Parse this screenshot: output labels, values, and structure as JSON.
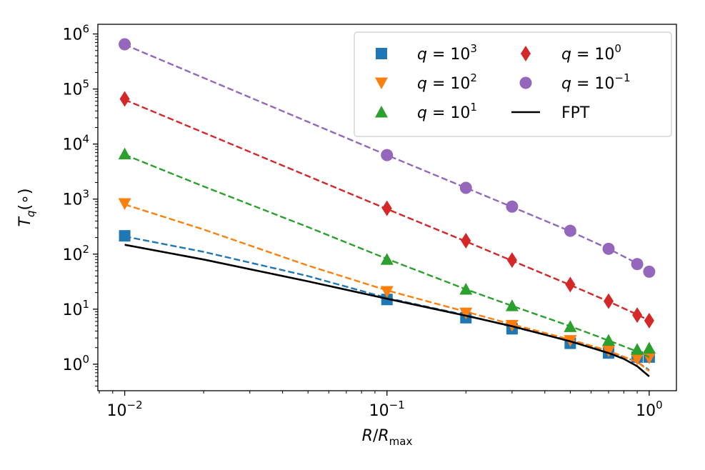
{
  "chart_data": {
    "type": "line",
    "scale": {
      "x": "log",
      "y": "log"
    },
    "xlabel": {
      "main": "R/R",
      "sub": "max"
    },
    "ylabel": {
      "main": "T",
      "sub": "q",
      "suffix": "(∘)"
    },
    "xlim": [
      0.0079,
      1.27
    ],
    "ylim": [
      0.33,
      1500000
    ],
    "x_ticks": [
      {
        "value": 0.01,
        "base": "10",
        "exp": "−2"
      },
      {
        "value": 0.1,
        "base": "10",
        "exp": "−1"
      },
      {
        "value": 1,
        "base": "10",
        "exp": "0"
      }
    ],
    "y_ticks": [
      {
        "value": 1,
        "base": "10",
        "exp": "0"
      },
      {
        "value": 10,
        "base": "10",
        "exp": "1"
      },
      {
        "value": 100,
        "base": "10",
        "exp": "2"
      },
      {
        "value": 1000,
        "base": "10",
        "exp": "3"
      },
      {
        "value": 10000,
        "base": "10",
        "exp": "4"
      },
      {
        "value": 100000,
        "base": "10",
        "exp": "5"
      },
      {
        "value": 1000000,
        "base": "10",
        "exp": "6"
      }
    ],
    "legend_position": "top-right",
    "series": [
      {
        "name": "q = 10^3",
        "q_exp": "3",
        "color": "#1f77b4",
        "marker": "square",
        "points": [
          {
            "x": 0.01,
            "y": 215
          },
          {
            "x": 0.1,
            "y": 15
          },
          {
            "x": 0.2,
            "y": 7
          },
          {
            "x": 0.3,
            "y": 4.4
          },
          {
            "x": 0.5,
            "y": 2.4
          },
          {
            "x": 0.7,
            "y": 1.6
          },
          {
            "x": 0.9,
            "y": 1.35
          },
          {
            "x": 1.0,
            "y": 1.35
          }
        ],
        "fit_curve": [
          {
            "x": 0.01,
            "y": 210
          },
          {
            "x": 0.02,
            "y": 110
          },
          {
            "x": 0.05,
            "y": 40
          },
          {
            "x": 0.1,
            "y": 16
          },
          {
            "x": 0.2,
            "y": 7.8
          },
          {
            "x": 0.3,
            "y": 4.8
          },
          {
            "x": 0.5,
            "y": 2.7
          },
          {
            "x": 0.7,
            "y": 1.7
          },
          {
            "x": 0.9,
            "y": 1.1
          },
          {
            "x": 1.0,
            "y": 0.78
          }
        ]
      },
      {
        "name": "q = 10^2",
        "q_exp": "2",
        "color": "#ff7f0e",
        "marker": "triangle-down",
        "points": [
          {
            "x": 0.01,
            "y": 830
          },
          {
            "x": 0.1,
            "y": 21
          },
          {
            "x": 0.2,
            "y": 8.5
          },
          {
            "x": 0.3,
            "y": 5.1
          },
          {
            "x": 0.5,
            "y": 2.7
          },
          {
            "x": 0.7,
            "y": 1.75
          },
          {
            "x": 0.9,
            "y": 1.25
          },
          {
            "x": 1.0,
            "y": 1.3
          }
        ],
        "fit_curve": [
          {
            "x": 0.01,
            "y": 800
          },
          {
            "x": 0.02,
            "y": 280
          },
          {
            "x": 0.05,
            "y": 62
          },
          {
            "x": 0.1,
            "y": 22
          },
          {
            "x": 0.2,
            "y": 9
          },
          {
            "x": 0.3,
            "y": 5.3
          },
          {
            "x": 0.5,
            "y": 2.8
          },
          {
            "x": 0.7,
            "y": 1.75
          },
          {
            "x": 0.9,
            "y": 1.1
          },
          {
            "x": 1.0,
            "y": 0.75
          }
        ]
      },
      {
        "name": "q = 10^1",
        "q_exp": "1",
        "color": "#2ca02c",
        "marker": "triangle-up",
        "points": [
          {
            "x": 0.01,
            "y": 6600
          },
          {
            "x": 0.1,
            "y": 80
          },
          {
            "x": 0.2,
            "y": 23
          },
          {
            "x": 0.3,
            "y": 11.5
          },
          {
            "x": 0.5,
            "y": 4.8
          },
          {
            "x": 0.7,
            "y": 2.7
          },
          {
            "x": 0.9,
            "y": 1.85
          },
          {
            "x": 1.0,
            "y": 1.95
          }
        ],
        "fit_curve": [
          {
            "x": 0.01,
            "y": 6400
          },
          {
            "x": 0.02,
            "y": 1700
          },
          {
            "x": 0.05,
            "y": 310
          },
          {
            "x": 0.1,
            "y": 82
          },
          {
            "x": 0.2,
            "y": 23
          },
          {
            "x": 0.3,
            "y": 11.5
          },
          {
            "x": 0.5,
            "y": 4.9
          },
          {
            "x": 0.7,
            "y": 2.7
          },
          {
            "x": 0.9,
            "y": 1.7
          },
          {
            "x": 1.0,
            "y": 1.35
          }
        ]
      },
      {
        "name": "q = 10^0",
        "q_exp": "0",
        "color": "#d62728",
        "marker": "diamond",
        "points": [
          {
            "x": 0.01,
            "y": 66000
          },
          {
            "x": 0.1,
            "y": 680
          },
          {
            "x": 0.2,
            "y": 175
          },
          {
            "x": 0.3,
            "y": 78
          },
          {
            "x": 0.5,
            "y": 28
          },
          {
            "x": 0.7,
            "y": 14
          },
          {
            "x": 0.9,
            "y": 7.8
          },
          {
            "x": 1.0,
            "y": 6.2
          }
        ],
        "fit_curve": [
          {
            "x": 0.01,
            "y": 64000
          },
          {
            "x": 0.1,
            "y": 660
          },
          {
            "x": 0.2,
            "y": 170
          },
          {
            "x": 0.3,
            "y": 76
          },
          {
            "x": 0.5,
            "y": 27.5
          },
          {
            "x": 0.7,
            "y": 13.8
          },
          {
            "x": 0.9,
            "y": 8
          },
          {
            "x": 1.0,
            "y": 6.2
          }
        ]
      },
      {
        "name": "q = 10^-1",
        "q_exp": "−1",
        "color": "#9467bd",
        "marker": "circle",
        "points": [
          {
            "x": 0.01,
            "y": 650000
          },
          {
            "x": 0.1,
            "y": 6300
          },
          {
            "x": 0.2,
            "y": 1600
          },
          {
            "x": 0.3,
            "y": 730
          },
          {
            "x": 0.5,
            "y": 265
          },
          {
            "x": 0.7,
            "y": 125
          },
          {
            "x": 0.9,
            "y": 66
          },
          {
            "x": 1.0,
            "y": 48
          }
        ],
        "fit_curve": [
          {
            "x": 0.01,
            "y": 640000
          },
          {
            "x": 0.1,
            "y": 6300
          },
          {
            "x": 0.2,
            "y": 1600
          },
          {
            "x": 0.3,
            "y": 720
          },
          {
            "x": 0.5,
            "y": 260
          },
          {
            "x": 0.7,
            "y": 125
          },
          {
            "x": 0.9,
            "y": 68
          },
          {
            "x": 1.0,
            "y": 50
          }
        ]
      },
      {
        "name": "FPT",
        "color": "#000000",
        "marker": "none",
        "line": "solid",
        "fit_curve": [
          {
            "x": 0.01,
            "y": 148
          },
          {
            "x": 0.02,
            "y": 80
          },
          {
            "x": 0.05,
            "y": 32
          },
          {
            "x": 0.1,
            "y": 15.5
          },
          {
            "x": 0.2,
            "y": 7.6
          },
          {
            "x": 0.3,
            "y": 4.9
          },
          {
            "x": 0.5,
            "y": 2.6
          },
          {
            "x": 0.7,
            "y": 1.6
          },
          {
            "x": 0.8,
            "y": 1.25
          },
          {
            "x": 0.9,
            "y": 0.92
          },
          {
            "x": 1.0,
            "y": 0.6
          }
        ]
      }
    ]
  },
  "legend": {
    "entries": [
      {
        "series": 0,
        "col": 0,
        "row": 0,
        "var": "q",
        "eq": " = ",
        "base": "10",
        "exp": "3"
      },
      {
        "series": 1,
        "col": 0,
        "row": 1,
        "var": "q",
        "eq": " = ",
        "base": "10",
        "exp": "2"
      },
      {
        "series": 2,
        "col": 0,
        "row": 2,
        "var": "q",
        "eq": " = ",
        "base": "10",
        "exp": "1"
      },
      {
        "series": 3,
        "col": 1,
        "row": 0,
        "var": "q",
        "eq": " = ",
        "base": "10",
        "exp": "0"
      },
      {
        "series": 4,
        "col": 1,
        "row": 1,
        "var": "q",
        "eq": " = ",
        "base": "10",
        "exp": "−1"
      },
      {
        "series": 5,
        "col": 1,
        "row": 2,
        "label": "FPT"
      }
    ]
  }
}
